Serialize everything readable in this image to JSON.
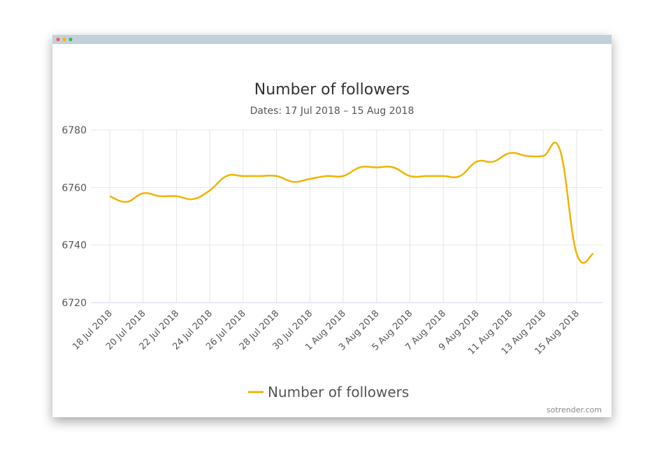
{
  "chart_data": {
    "type": "line",
    "title": "Number of followers",
    "subtitle": "Dates: 17 Jul 2018 – 15 Aug 2018",
    "categories": [
      "18 Jul 2018",
      null,
      "20 Jul 2018",
      null,
      "22 Jul 2018",
      null,
      "24 Jul 2018",
      null,
      "26 Jul 2018",
      null,
      "28 Jul 2018",
      null,
      "30 Jul 2018",
      null,
      "1 Aug 2018",
      null,
      "3 Aug 2018",
      null,
      "5 Aug 2018",
      null,
      "7 Aug 2018",
      null,
      "9 Aug 2018",
      null,
      "11 Aug 2018",
      null,
      "13 Aug 2018",
      null,
      "15 Aug 2018",
      null
    ],
    "series": [
      {
        "name": "Number of followers",
        "color": "#f0b400",
        "values": [
          6757,
          6755,
          6758,
          6757,
          6757,
          6756,
          6759,
          6764,
          6764,
          6764,
          6764,
          6762,
          6763,
          6764,
          6764,
          6767,
          6767,
          6767,
          6764,
          6764,
          6764,
          6764,
          6769,
          6769,
          6772,
          6771,
          6771,
          6773,
          6737,
          6737
        ]
      }
    ],
    "ylim": [
      6720,
      6780
    ],
    "yticks": [
      6720,
      6740,
      6760,
      6780
    ],
    "grid": true,
    "watermark": "sotrender.com"
  }
}
